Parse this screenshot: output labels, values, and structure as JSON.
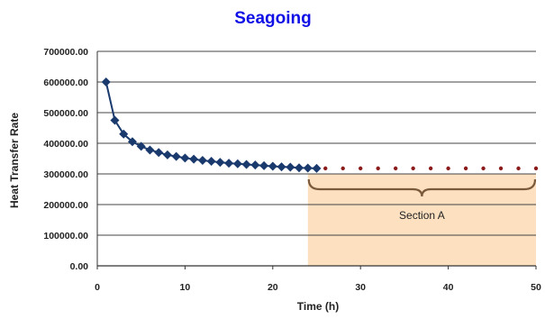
{
  "chart_data": {
    "type": "line",
    "title": "Seagoing",
    "xlabel": "Time (h)",
    "ylabel": "Heat Transfer Rate",
    "xlim": [
      0,
      50
    ],
    "ylim": [
      0,
      700000
    ],
    "x_ticks": [
      0,
      10,
      20,
      30,
      40,
      50
    ],
    "y_ticks": [
      0,
      100000,
      200000,
      300000,
      400000,
      500000,
      600000,
      700000
    ],
    "x_tick_labels": [
      "0",
      "10",
      "20",
      "30",
      "40",
      "50"
    ],
    "y_tick_labels": [
      "0.00",
      "100000.00",
      "200000.00",
      "300000.00",
      "400000.00",
      "500000.00",
      "600000.00",
      "700000.00"
    ],
    "grid": "horizontal",
    "series": [
      {
        "color": "#1a3a6e",
        "marker": "diamond",
        "x": [
          1,
          2,
          3,
          4,
          5,
          6,
          7,
          8,
          9,
          10,
          11,
          12,
          13,
          14,
          15,
          16,
          17,
          18,
          19,
          20,
          21,
          22,
          23,
          24,
          25
        ],
        "y": [
          600000,
          475000,
          430000,
          405000,
          390000,
          378000,
          370000,
          362000,
          357000,
          352000,
          348000,
          344000,
          341000,
          338000,
          335000,
          333000,
          331000,
          329000,
          327000,
          325000,
          323000,
          322000,
          320000,
          319000,
          318000
        ]
      },
      {
        "color": "#8b1a1a",
        "marker": "dot",
        "x": [
          26,
          28,
          30,
          32,
          34,
          36,
          38,
          40,
          42,
          44,
          46,
          48,
          50
        ],
        "y": [
          318000,
          318000,
          318000,
          318000,
          318000,
          318000,
          318000,
          318000,
          318000,
          318000,
          318000,
          318000,
          318000
        ]
      }
    ],
    "annotation": {
      "label": "Section A",
      "x_range": [
        24,
        50
      ],
      "y_range": [
        0,
        300000
      ],
      "color": "#fde0c0",
      "brace_color": "#7a5a3a"
    }
  }
}
